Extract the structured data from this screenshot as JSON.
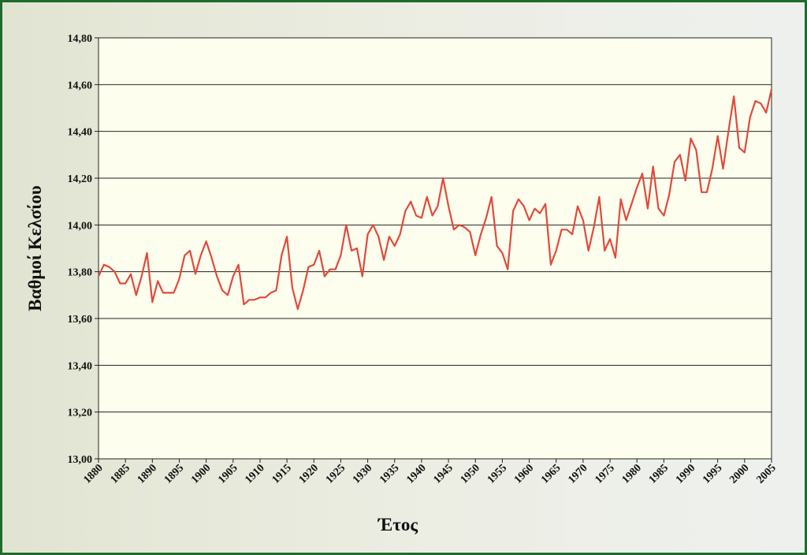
{
  "colors": {
    "frame_border": "#1e6b2c",
    "plot_background": "#fefeee",
    "series_line": "#e04a3c",
    "gridline": "#222222"
  },
  "chart_data": {
    "type": "line",
    "title": "",
    "xlabel": "Έτος",
    "ylabel": "Βαθμοί Κελσίου",
    "xlim": [
      1880,
      2005
    ],
    "ylim": [
      13.0,
      14.8
    ],
    "grid": true,
    "legend": "none",
    "x_ticks": [
      "1880",
      "1885",
      "1890",
      "1895",
      "1900",
      "1905",
      "1910",
      "1915",
      "1920",
      "1925",
      "1930",
      "1935",
      "1940",
      "1945",
      "1950",
      "1955",
      "1960",
      "1965",
      "1970",
      "1975",
      "1980",
      "1985",
      "1990",
      "1995",
      "2000",
      "2005"
    ],
    "y_ticks": [
      "13,00",
      "13,20",
      "13,40",
      "13,60",
      "13,80",
      "14,00",
      "14,20",
      "14,40",
      "14,60",
      "14,80"
    ],
    "y_tick_values": [
      13.0,
      13.2,
      13.4,
      13.6,
      13.8,
      14.0,
      14.2,
      14.4,
      14.6,
      14.8
    ],
    "x": [
      1880,
      1881,
      1882,
      1883,
      1884,
      1885,
      1886,
      1887,
      1888,
      1889,
      1890,
      1891,
      1892,
      1893,
      1894,
      1895,
      1896,
      1897,
      1898,
      1899,
      1900,
      1901,
      1902,
      1903,
      1904,
      1905,
      1906,
      1907,
      1908,
      1909,
      1910,
      1911,
      1912,
      1913,
      1914,
      1915,
      1916,
      1917,
      1918,
      1919,
      1920,
      1921,
      1922,
      1923,
      1924,
      1925,
      1926,
      1927,
      1928,
      1929,
      1930,
      1931,
      1932,
      1933,
      1934,
      1935,
      1936,
      1937,
      1938,
      1939,
      1940,
      1941,
      1942,
      1943,
      1944,
      1945,
      1946,
      1947,
      1948,
      1949,
      1950,
      1951,
      1952,
      1953,
      1954,
      1955,
      1956,
      1957,
      1958,
      1959,
      1960,
      1961,
      1962,
      1963,
      1964,
      1965,
      1966,
      1967,
      1968,
      1969,
      1970,
      1971,
      1972,
      1973,
      1974,
      1975,
      1976,
      1977,
      1978,
      1979,
      1980,
      1981,
      1982,
      1983,
      1984,
      1985,
      1986,
      1987,
      1988,
      1989,
      1990,
      1991,
      1992,
      1993,
      1994,
      1995,
      1996,
      1997,
      1998,
      1999,
      2000,
      2001,
      2002,
      2003,
      2004,
      2005
    ],
    "series": [
      {
        "values": [
          13.78,
          13.83,
          13.82,
          13.8,
          13.75,
          13.75,
          13.79,
          13.7,
          13.78,
          13.88,
          13.67,
          13.76,
          13.71,
          13.71,
          13.71,
          13.77,
          13.87,
          13.89,
          13.79,
          13.87,
          13.93,
          13.86,
          13.78,
          13.72,
          13.7,
          13.78,
          13.83,
          13.66,
          13.68,
          13.68,
          13.69,
          13.69,
          13.71,
          13.72,
          13.87,
          13.95,
          13.73,
          13.64,
          13.72,
          13.82,
          13.83,
          13.89,
          13.78,
          13.81,
          13.81,
          13.87,
          14.0,
          13.89,
          13.9,
          13.78,
          13.96,
          14.0,
          13.95,
          13.85,
          13.95,
          13.91,
          13.96,
          14.06,
          14.1,
          14.04,
          14.03,
          14.12,
          14.04,
          14.08,
          14.2,
          14.08,
          13.98,
          14.0,
          13.99,
          13.97,
          13.87,
          13.96,
          14.03,
          14.12,
          13.91,
          13.88,
          13.81,
          14.06,
          14.11,
          14.08,
          14.02,
          14.07,
          14.05,
          14.09,
          13.83,
          13.89,
          13.98,
          13.98,
          13.96,
          14.08,
          14.02,
          13.89,
          13.99,
          14.12,
          13.89,
          13.94,
          13.86,
          14.11,
          14.02,
          14.09,
          14.16,
          14.22,
          14.07,
          14.25,
          14.07,
          14.04,
          14.13,
          14.27,
          14.3,
          14.19,
          14.37,
          14.32,
          14.14,
          14.14,
          14.24,
          14.38,
          14.24,
          14.4,
          14.55,
          14.33,
          14.31,
          14.46,
          14.53,
          14.52,
          14.48,
          14.58
        ]
      }
    ]
  }
}
